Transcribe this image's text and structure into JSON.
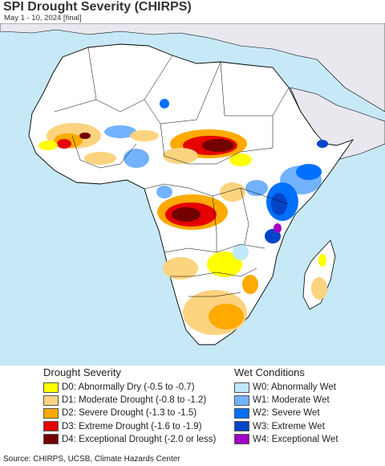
{
  "title": "SPI Drought Severity (CHIRPS)",
  "subtitle": "May 1 - 10, 2024 [final]",
  "legend": {
    "drought": {
      "title": "Drought Severity",
      "items": [
        {
          "label": "D0: Abnormally Dry (-0.5 to -0.7)",
          "color": "#ffff00"
        },
        {
          "label": "D1: Moderate Drought (-0.8 to -1.2)",
          "color": "#fcd37f"
        },
        {
          "label": "D2: Severe Drought (-1.3 to -1.5)",
          "color": "#ffaa00"
        },
        {
          "label": "D3: Extreme Drought (-1.6 to -1.9)",
          "color": "#e60000"
        },
        {
          "label": "D4: Exceptional Drought (-2.0 or less)",
          "color": "#730000"
        }
      ]
    },
    "wet": {
      "title": "Wet Conditions",
      "items": [
        {
          "label": "W0: Abnormally Wet",
          "color": "#bee8ff"
        },
        {
          "label": "W1: Moderate Wet",
          "color": "#73b2ff"
        },
        {
          "label": "W2: Severe Wet",
          "color": "#0070ff"
        },
        {
          "label": "W3: Extreme Wet",
          "color": "#0044c8"
        },
        {
          "label": "W4: Exceptional Wet",
          "color": "#a000c8"
        }
      ]
    }
  },
  "colors": {
    "ocean": "#c7e9f7",
    "land_normal": "#ffffff",
    "land_outside": "#e8e8ee",
    "boundary": "#000000"
  },
  "source": "Source: CHIRPS, UCSB, Climate Hazards Center"
}
